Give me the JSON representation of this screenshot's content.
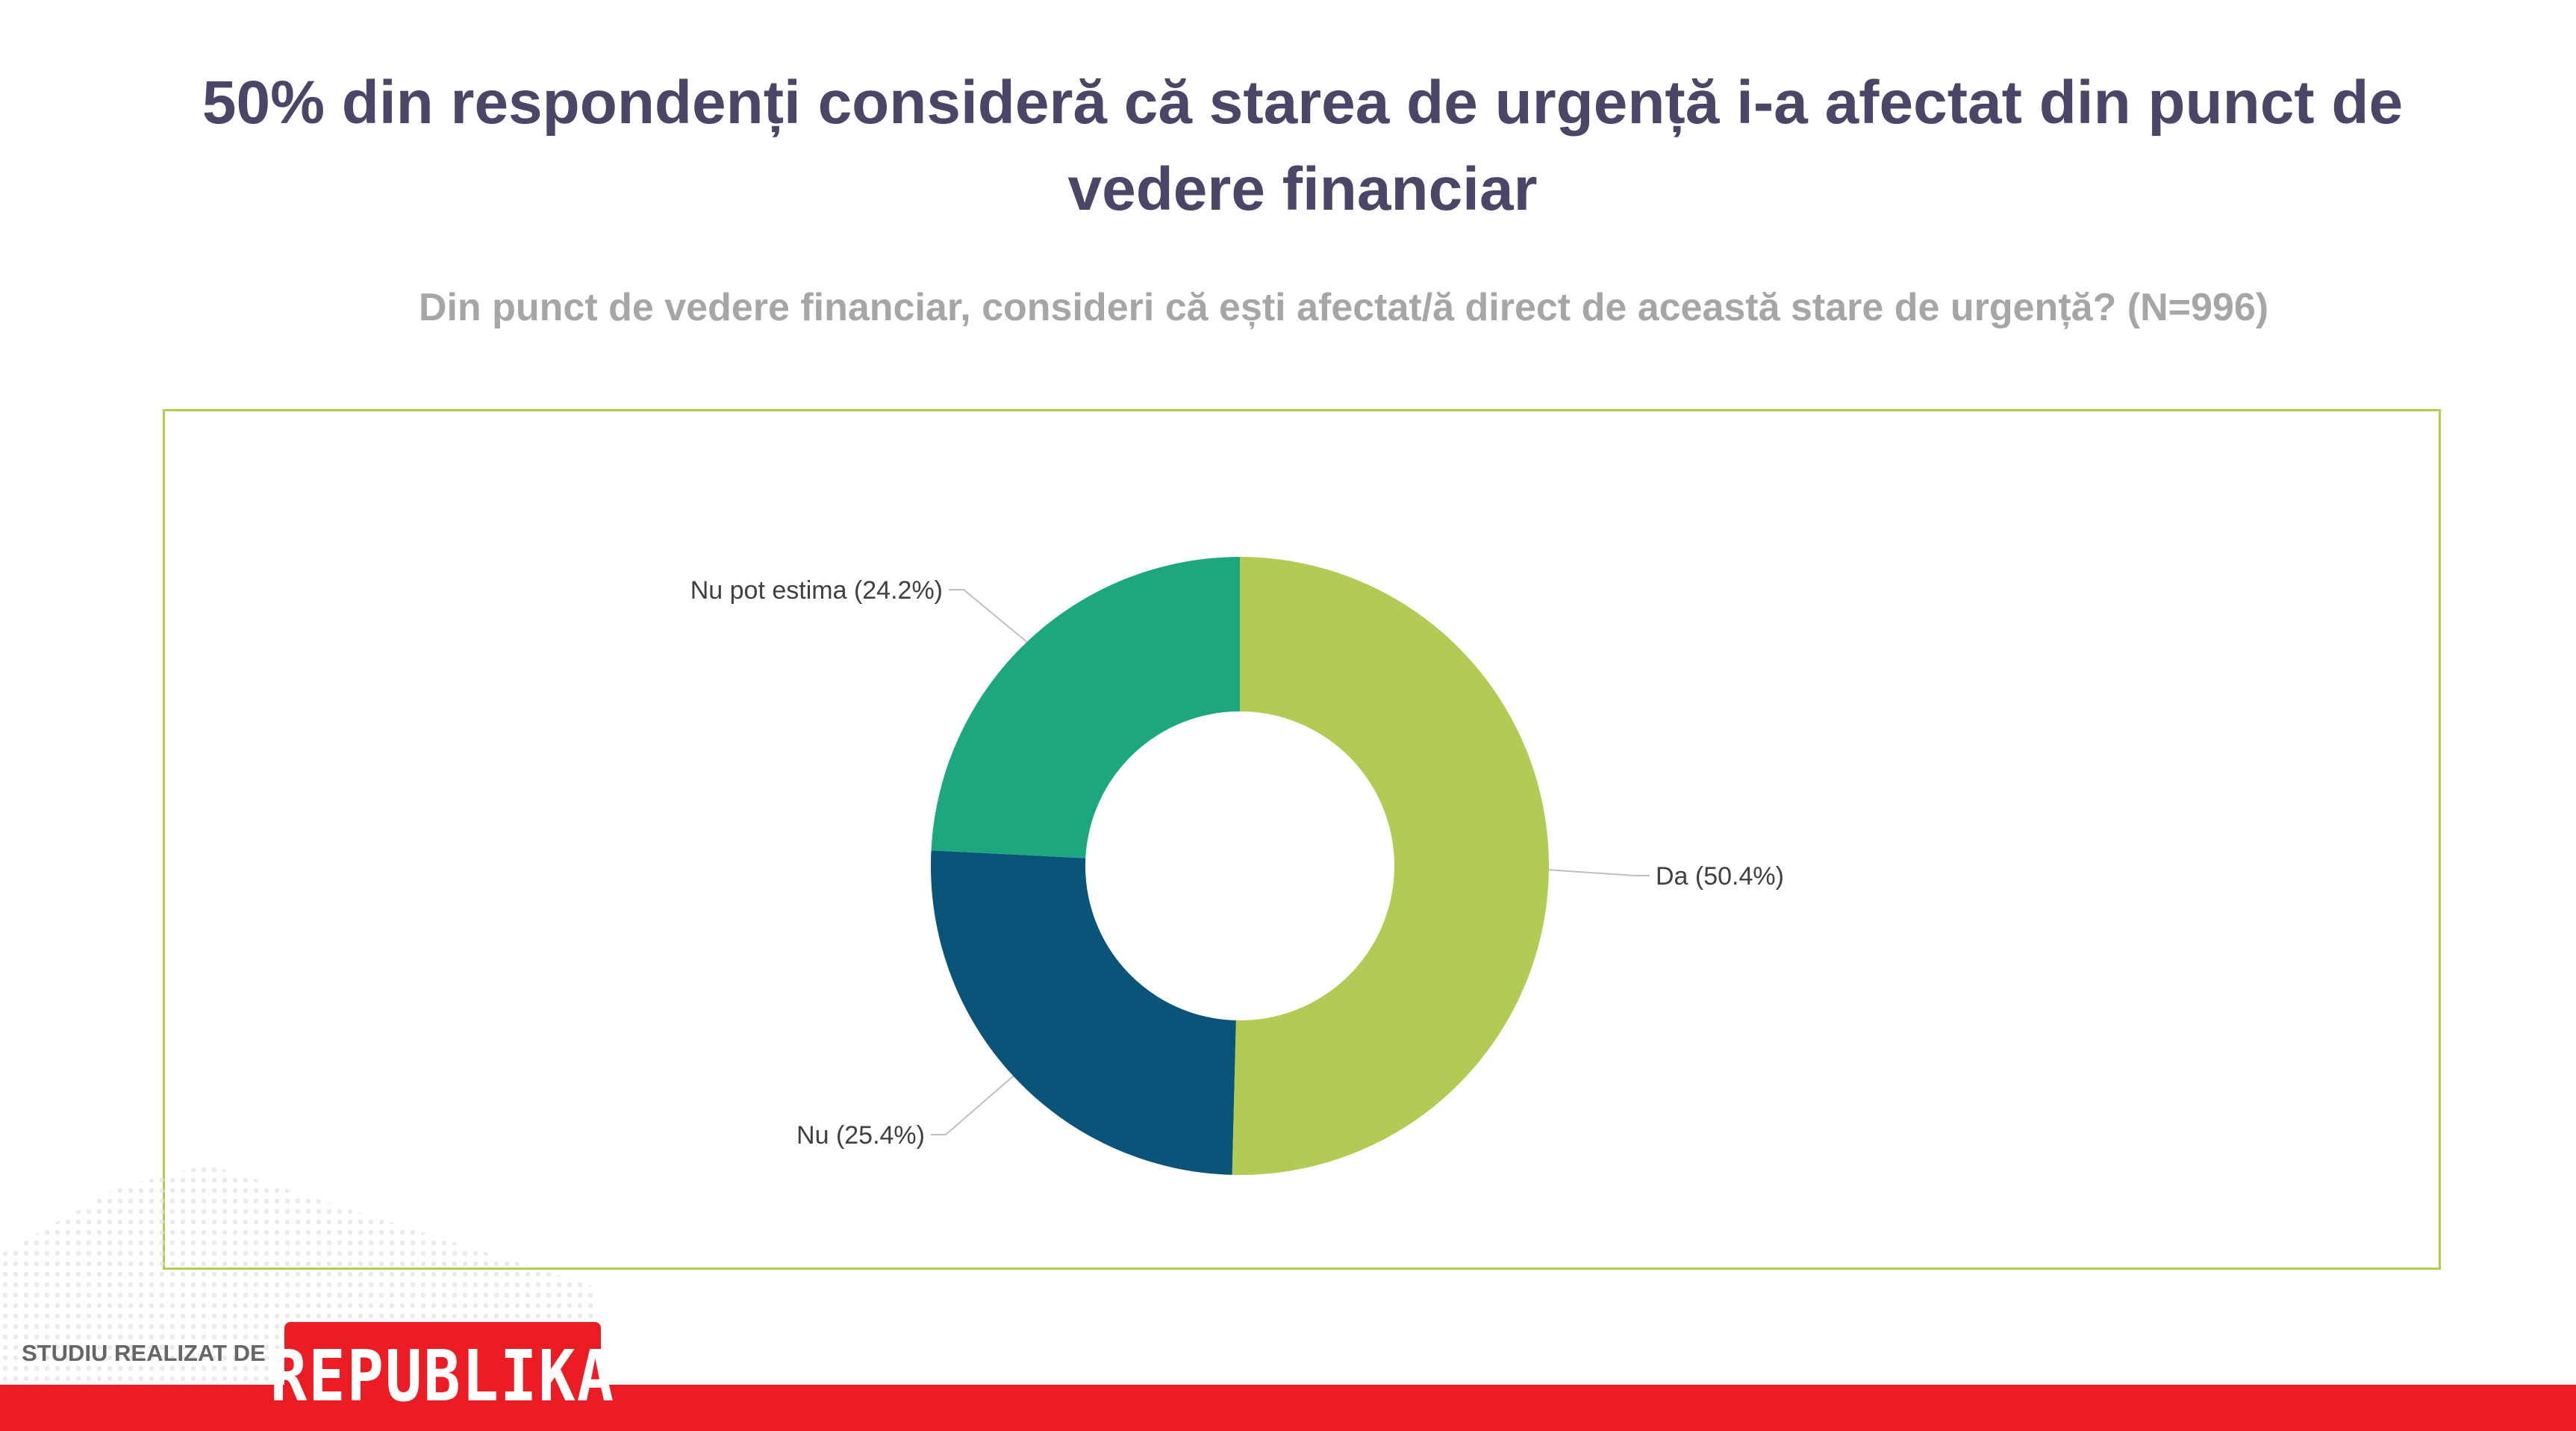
{
  "chart_data": {
    "type": "pie",
    "donut": true,
    "title": "50% din respondenți consideră că starea de urgență i-a afectat din punct de vedere financiar",
    "subtitle": "Din punct de vedere financiar, consideri că ești afectat/ă direct de această stare de urgență?  (N=996)",
    "slices": [
      {
        "name": "Da",
        "value": 50.4,
        "label": "Da (50.4%)",
        "color": "#b2cb55"
      },
      {
        "name": "Nu",
        "value": 25.4,
        "label": "Nu (25.4%)",
        "color": "#0b5479"
      },
      {
        "name": "Nu pot estima",
        "value": 24.2,
        "label": "Nu pot estima (24.2%)",
        "color": "#1da77e"
      }
    ]
  },
  "footer": {
    "credit": "STUDIU REALIZAT DE",
    "logo_text": "REPUBLIKA"
  }
}
